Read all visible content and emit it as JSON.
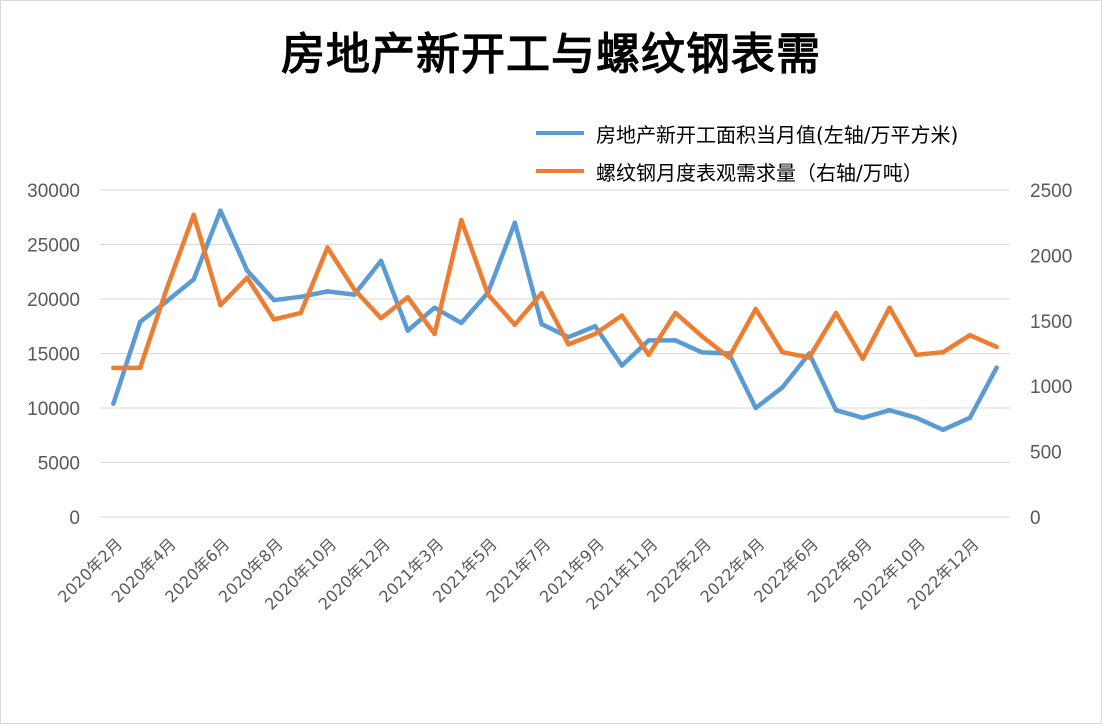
{
  "chart_data": {
    "type": "line",
    "title": "房地产新开工与螺纹钢表需",
    "x": [
      "2020年2月",
      "2020年3月",
      "2020年4月",
      "2020年5月",
      "2020年6月",
      "2020年7月",
      "2020年8月",
      "2020年9月",
      "2020年10月",
      "2020年11月",
      "2020年12月",
      "2021年2月",
      "2021年3月",
      "2021年4月",
      "2021年5月",
      "2021年6月",
      "2021年7月",
      "2021年8月",
      "2021年9月",
      "2021年10月",
      "2021年11月",
      "2021年12月",
      "2022年2月",
      "2022年3月",
      "2022年4月",
      "2022年5月",
      "2022年6月",
      "2022年7月",
      "2022年8月",
      "2022年9月",
      "2022年10月",
      "2022年11月",
      "2022年12月",
      "2023年2月"
    ],
    "xtick_labels": [
      "2020年2月",
      "2020年4月",
      "2020年6月",
      "2020年8月",
      "2020年10月",
      "2020年12月",
      "2021年3月",
      "2021年5月",
      "2021年7月",
      "2021年9月",
      "2021年11月",
      "2022年2月",
      "2022年4月",
      "2022年6月",
      "2022年8月",
      "2022年10月",
      "2022年12月"
    ],
    "series": [
      {
        "name": "房地产新开工面积当月值(左轴/万平方米)",
        "axis": "left",
        "color": "#5B9BD5",
        "values": [
          10400,
          17900,
          19800,
          21800,
          28100,
          22600,
          19900,
          20200,
          20700,
          20400,
          23500,
          17100,
          19200,
          17800,
          20600,
          27000,
          17700,
          16500,
          17500,
          13900,
          16200,
          16200,
          15100,
          15000,
          10000,
          11900,
          15000,
          9800,
          9100,
          9800,
          9100,
          8000,
          9100,
          13700
        ]
      },
      {
        "name": "螺纹钢月度表观需求量（右轴/万吨）",
        "axis": "right",
        "color": "#ED7D31",
        "values": [
          1140,
          1140,
          1750,
          2310,
          1620,
          1830,
          1510,
          1560,
          2060,
          1740,
          1520,
          1680,
          1400,
          2270,
          1700,
          1470,
          1710,
          1320,
          1400,
          1540,
          1240,
          1560,
          1380,
          1220,
          1590,
          1260,
          1220,
          1560,
          1210,
          1600,
          1240,
          1260,
          1390,
          1300
        ]
      }
    ],
    "ylim": [
      0,
      30000
    ],
    "y2lim": [
      0,
      2500
    ],
    "yticks": [
      "0",
      "5000",
      "10000",
      "15000",
      "20000",
      "25000",
      "30000"
    ],
    "y2ticks": [
      "0",
      "500",
      "1000",
      "1500",
      "2000",
      "2500"
    ],
    "grid": "horizontal",
    "legend_position": "top-right"
  }
}
